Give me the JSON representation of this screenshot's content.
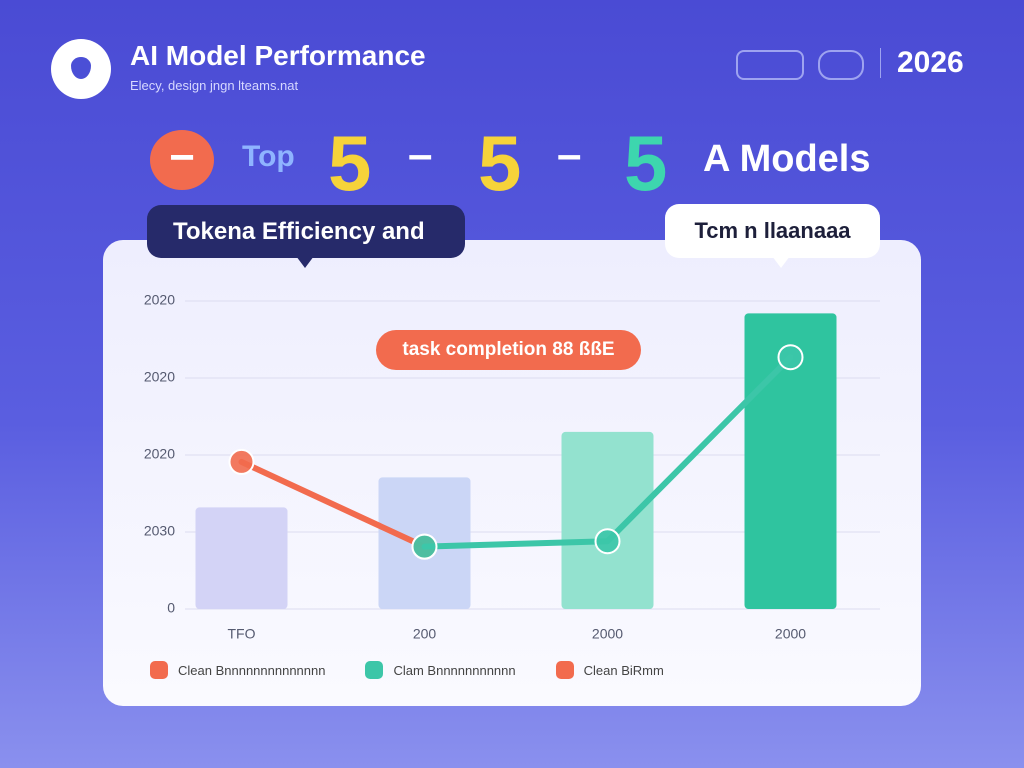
{
  "header": {
    "title": "AI Model Performance",
    "subtitle": "Elecy, design jngn lteams.nat",
    "year": "2026"
  },
  "headline": {
    "prefix": "Top",
    "numbers": [
      "5",
      "5",
      "5"
    ],
    "separators": [
      "–",
      "–"
    ],
    "suffix": "A Models",
    "badge": "−"
  },
  "callouts": [
    "Tokena Efficiency and",
    "Tcm n llaanaaa",
    "task completion 88 ßßE"
  ],
  "legend_items": [
    {
      "label": "Clean Bnnnnnnnnnnnnnn",
      "color": "#f26b4e"
    },
    {
      "label": "Clam Bnnnnnnnnnnn",
      "color": "#3cc6a8"
    },
    {
      "label": "Clean BiRmm",
      "color": "#f26b4e"
    }
  ],
  "chart_data": {
    "type": "bar",
    "categories": [
      "TFO",
      "200",
      "2000",
      "2000"
    ],
    "values": [
      1.32,
      1.71,
      2.3,
      3.84
    ],
    "colors": [
      "#d3d3f6",
      "#cbd6f6",
      "#93e2cf",
      "#2fc49f"
    ],
    "ylim": [
      0,
      4
    ],
    "yticks": [
      {
        "value": 0,
        "label": "0"
      },
      {
        "value": 1,
        "label": "2030"
      },
      {
        "value": 2,
        "label": "2020"
      },
      {
        "value": 3,
        "label": "2020"
      },
      {
        "value": 4,
        "label": "2020"
      }
    ],
    "grid": true,
    "lines": [
      {
        "color": "#f26b4e",
        "values": [
          1.91,
          0.81,
          null,
          null
        ]
      },
      {
        "color": "#3cc6a8",
        "values": [
          null,
          0.81,
          0.88,
          3.27
        ]
      }
    ]
  }
}
